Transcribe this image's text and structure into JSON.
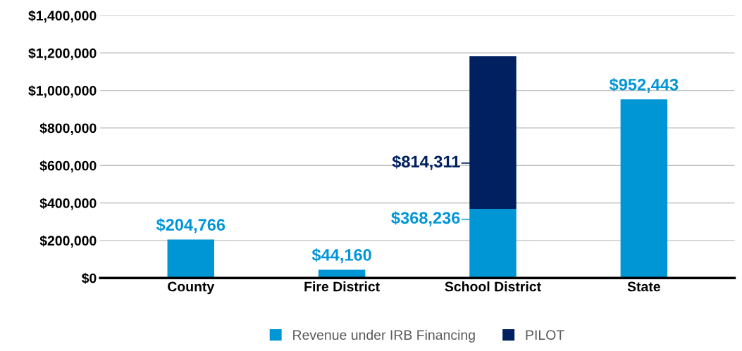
{
  "chart_data": {
    "type": "bar",
    "stacked": true,
    "categories": [
      "County",
      "Fire District",
      "School District",
      "State"
    ],
    "series": [
      {
        "name": "Revenue under IRB Financing",
        "color": "#0096d6",
        "values": [
          204766,
          44160,
          368236,
          952443
        ],
        "value_labels": [
          "$204,766",
          "$44,160",
          "$368,236",
          "$952,443"
        ]
      },
      {
        "name": "PILOT",
        "color": "#002060",
        "values": [
          null,
          null,
          814311,
          null
        ],
        "value_labels": [
          null,
          null,
          "$814,311",
          null
        ]
      }
    ],
    "ylim": [
      0,
      1400000
    ],
    "yticks": [
      {
        "value": 0,
        "label": "$0"
      },
      {
        "value": 200000,
        "label": "$200,000"
      },
      {
        "value": 400000,
        "label": "$400,000"
      },
      {
        "value": 600000,
        "label": "$600,000"
      },
      {
        "value": 800000,
        "label": "$800,000"
      },
      {
        "value": 1000000,
        "label": "$1,000,000"
      },
      {
        "value": 1200000,
        "label": "$1,200,000"
      },
      {
        "value": 1400000,
        "label": "$1,400,000"
      }
    ],
    "grid": "y",
    "legend": "bottom"
  }
}
